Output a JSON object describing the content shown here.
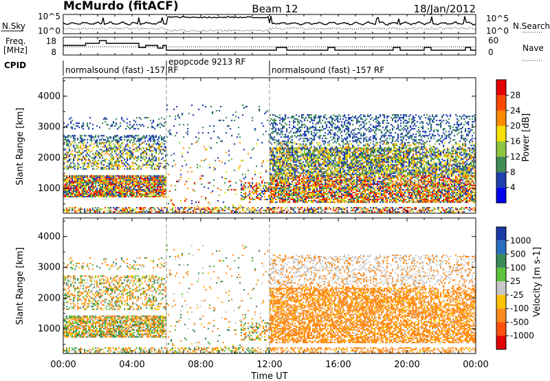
{
  "header": {
    "title": "McMurdo (fitACF)",
    "beam": "Beam 12",
    "date": "18/Jan/2012"
  },
  "top_panels": {
    "noise": {
      "left_label": "N.Sky",
      "right_label": "N.Search",
      "left_ticks": [
        "10^5",
        "10^0"
      ],
      "right_ticks": [
        "10^5",
        "10^0"
      ]
    },
    "freq": {
      "left_label_1": "Freq.",
      "left_label_2": "[MHz]",
      "right_label": "Nave",
      "left_ticks": [
        "18",
        "8"
      ],
      "right_ticks": [
        "60",
        "0"
      ]
    },
    "cpid": {
      "label": "CPID",
      "segments": [
        {
          "text": "normalsound (fast) -157 RF",
          "start_hour": 0
        },
        {
          "text": "epopcode 9213 RF",
          "start_hour": 6
        },
        {
          "text": "normalsound (fast) -157 RF",
          "start_hour": 12
        }
      ]
    }
  },
  "chart_data": [
    {
      "type": "heatmap",
      "name": "power-panel",
      "ylabel": "Slant Range [km]",
      "y_ticks": [
        "1000",
        "2000",
        "3000",
        "4000"
      ],
      "ylim": [
        200,
        4600
      ],
      "colorbar": {
        "label": "Power [dB]",
        "ticks": [
          "4",
          "8",
          "12",
          "16",
          "20",
          "24",
          "28"
        ],
        "colors": [
          "#0000ee",
          "#1f3fae",
          "#3d8d55",
          "#8ec63f",
          "#f5e000",
          "#ff8c00",
          "#ff4a00",
          "#e80000"
        ]
      }
    },
    {
      "type": "heatmap",
      "name": "velocity-panel",
      "ylabel": "Slant Range [km]",
      "y_ticks": [
        "1000",
        "2000",
        "3000",
        "4000"
      ],
      "ylim": [
        200,
        4600
      ],
      "colorbar": {
        "label": "Velocity [m s-1]",
        "ticks": [
          "1000",
          "500",
          "100",
          "25",
          "-25",
          "-100",
          "-500",
          "-1000"
        ],
        "colors": [
          "#1a3aa8",
          "#2a6ec0",
          "#3a8a5a",
          "#5cc43c",
          "#c8c8c8",
          "#ffc400",
          "#ff8c1a",
          "#ff5010",
          "#e00000"
        ]
      }
    }
  ],
  "x_axis": {
    "label": "Time UT",
    "ticks": [
      "00:00",
      "04:00",
      "08:00",
      "12:00",
      "16:00",
      "20:00",
      "00:00"
    ],
    "xlim_hours": [
      0,
      24
    ]
  }
}
